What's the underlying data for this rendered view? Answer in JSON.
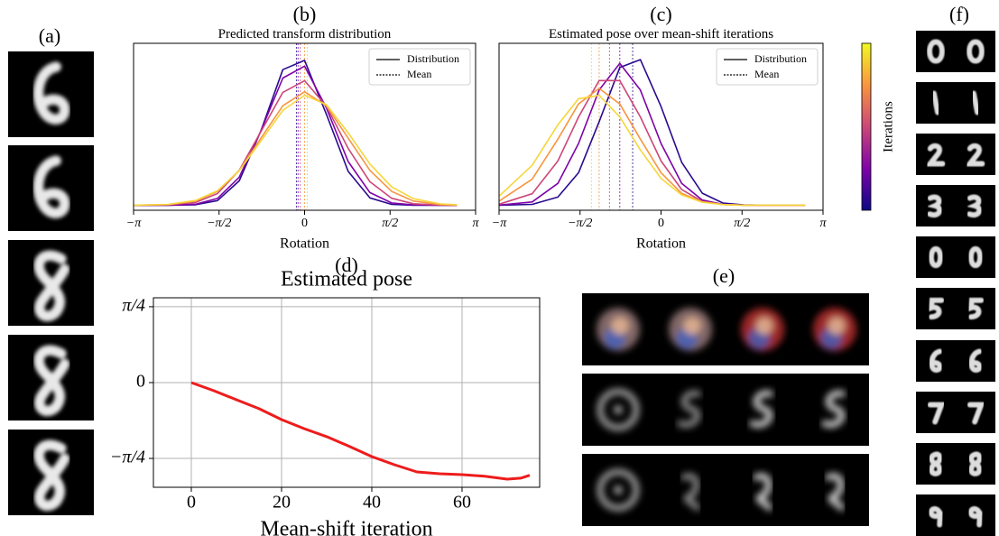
{
  "image_panel_labels": [
    "(a)",
    "(e)",
    "(f)"
  ],
  "chart_data": [
    {
      "type": "line",
      "panel_label": "(b)",
      "title": "Predicted transform distribution",
      "x_label": "Rotation",
      "x": [
        -3.14,
        -2.5,
        -2.0,
        -1.6,
        -1.2,
        -0.8,
        -0.4,
        0,
        0.4,
        0.8,
        1.2,
        1.6,
        2.0,
        2.5,
        2.8
      ],
      "series": [
        {
          "color": "#2a0a8f",
          "values": [
            0.03,
            0.03,
            0.033,
            0.058,
            0.176,
            0.477,
            0.842,
            0.898,
            0.576,
            0.233,
            0.074,
            0.035,
            0.03,
            0.03,
            0.03
          ],
          "mean": -0.15
        },
        {
          "color": "#7e03a8",
          "values": [
            0.03,
            0.03,
            0.036,
            0.071,
            0.198,
            0.477,
            0.792,
            0.863,
            0.614,
            0.292,
            0.106,
            0.044,
            0.032,
            0.03,
            0.03
          ],
          "mean": -0.12
        },
        {
          "color": "#cc4778",
          "values": [
            0.03,
            0.032,
            0.047,
            0.1,
            0.239,
            0.472,
            0.706,
            0.776,
            0.623,
            0.371,
            0.171,
            0.072,
            0.039,
            0.031,
            0.03
          ],
          "mean": -0.08
        },
        {
          "color": "#f89540",
          "values": [
            0.03,
            0.034,
            0.055,
            0.113,
            0.239,
            0.432,
            0.626,
            0.71,
            0.626,
            0.432,
            0.239,
            0.113,
            0.055,
            0.034,
            0.031
          ],
          "mean": 0
        },
        {
          "color": "#f5d63a",
          "values": [
            0.03,
            0.035,
            0.059,
            0.117,
            0.237,
            0.415,
            0.598,
            0.689,
            0.633,
            0.464,
            0.277,
            0.14,
            0.069,
            0.038,
            0.033
          ],
          "mean": 0.05
        }
      ],
      "xlim": [
        -3.1416,
        3.1416
      ],
      "ylim": [
        0,
        1
      ],
      "xticks": [
        {
          "value": -3.1416,
          "label": "−π"
        },
        {
          "value": -1.5708,
          "label": "−π/2"
        },
        0,
        {
          "value": 1.5708,
          "label": "π/2"
        },
        {
          "value": 3.1416,
          "label": "π"
        }
      ],
      "legend_entries": [
        "Distribution",
        "Mean"
      ],
      "legend": "upper right",
      "grid": false
    },
    {
      "type": "line",
      "panel_label": "(c)",
      "title": "Estimated pose over mean-shift iterations",
      "x_label": "Rotation",
      "x": [
        -3.14,
        -2.5,
        -2.0,
        -1.6,
        -1.2,
        -0.8,
        -0.4,
        0,
        0.4,
        0.8,
        1.2,
        1.6,
        2.0,
        2.5,
        2.8
      ],
      "series": [
        {
          "color": "#2a0a8f",
          "values": [
            0.03,
            0.035,
            0.079,
            0.225,
            0.53,
            0.855,
            0.902,
            0.621,
            0.287,
            0.102,
            0.043,
            0.032,
            0.03,
            0.03,
            0.03
          ],
          "mean": -0.55
        },
        {
          "color": "#7e03a8",
          "values": [
            0.031,
            0.05,
            0.161,
            0.4,
            0.72,
            0.88,
            0.72,
            0.4,
            0.161,
            0.061,
            0.035,
            0.031,
            0.03,
            0.03,
            0.03
          ],
          "mean": -0.8
        },
        {
          "color": "#cc4778",
          "values": [
            0.036,
            0.099,
            0.295,
            0.559,
            0.777,
            0.777,
            0.559,
            0.295,
            0.124,
            0.053,
            0.034,
            0.031,
            0.03,
            0.03,
            0.03
          ],
          "mean": -1.0
        },
        {
          "color": "#f89540",
          "values": [
            0.055,
            0.186,
            0.426,
            0.637,
            0.73,
            0.637,
            0.426,
            0.225,
            0.101,
            0.05,
            0.034,
            0.03,
            0.03,
            0.03,
            0.03
          ],
          "mean": -1.2
        },
        {
          "color": "#f5d63a",
          "values": [
            0.085,
            0.269,
            0.512,
            0.668,
            0.688,
            0.559,
            0.361,
            0.191,
            0.092,
            0.048,
            0.034,
            0.03,
            0.03,
            0.03,
            0.03
          ],
          "mean": -1.35
        }
      ],
      "xlim": [
        -3.1416,
        3.1416
      ],
      "ylim": [
        0,
        1
      ],
      "xticks": [
        {
          "value": -3.1416,
          "label": "−π"
        },
        {
          "value": -1.5708,
          "label": "−π/2"
        },
        0,
        {
          "value": 1.5708,
          "label": "π/2"
        },
        {
          "value": 3.1416,
          "label": "π"
        }
      ],
      "legend_entries": [
        "Distribution",
        "Mean"
      ],
      "legend": "upper right",
      "grid": false,
      "colorbar": {
        "label": "Iterations",
        "colors": [
          "#0d0887",
          "#7e03a8",
          "#cc4778",
          "#f89540",
          "#f0f921"
        ]
      }
    },
    {
      "type": "line",
      "panel_label": "(d)",
      "title": "Estimated pose",
      "x_label": "Mean-shift iteration",
      "x": [
        0,
        5,
        10,
        15,
        20,
        25,
        30,
        35,
        40,
        45,
        50,
        55,
        60,
        65,
        70,
        73,
        75
      ],
      "series": [
        {
          "color": "#ee1c1c",
          "values": [
            0,
            -0.084,
            -0.178,
            -0.27,
            -0.383,
            -0.477,
            -0.56,
            -0.66,
            -0.766,
            -0.85,
            -0.925,
            -0.944,
            -0.953,
            -0.97,
            -1.0,
            -0.99,
            -0.96
          ]
        }
      ],
      "xlim": [
        -8.4,
        77.2
      ],
      "ylim": [
        -1.084,
        0.878
      ],
      "xticks": [
        0,
        20,
        40,
        60
      ],
      "yticks": [
        {
          "value": -0.7854,
          "label": "−π/4"
        },
        0,
        {
          "value": 0.7854,
          "label": "π/4"
        }
      ],
      "grid": true
    }
  ]
}
